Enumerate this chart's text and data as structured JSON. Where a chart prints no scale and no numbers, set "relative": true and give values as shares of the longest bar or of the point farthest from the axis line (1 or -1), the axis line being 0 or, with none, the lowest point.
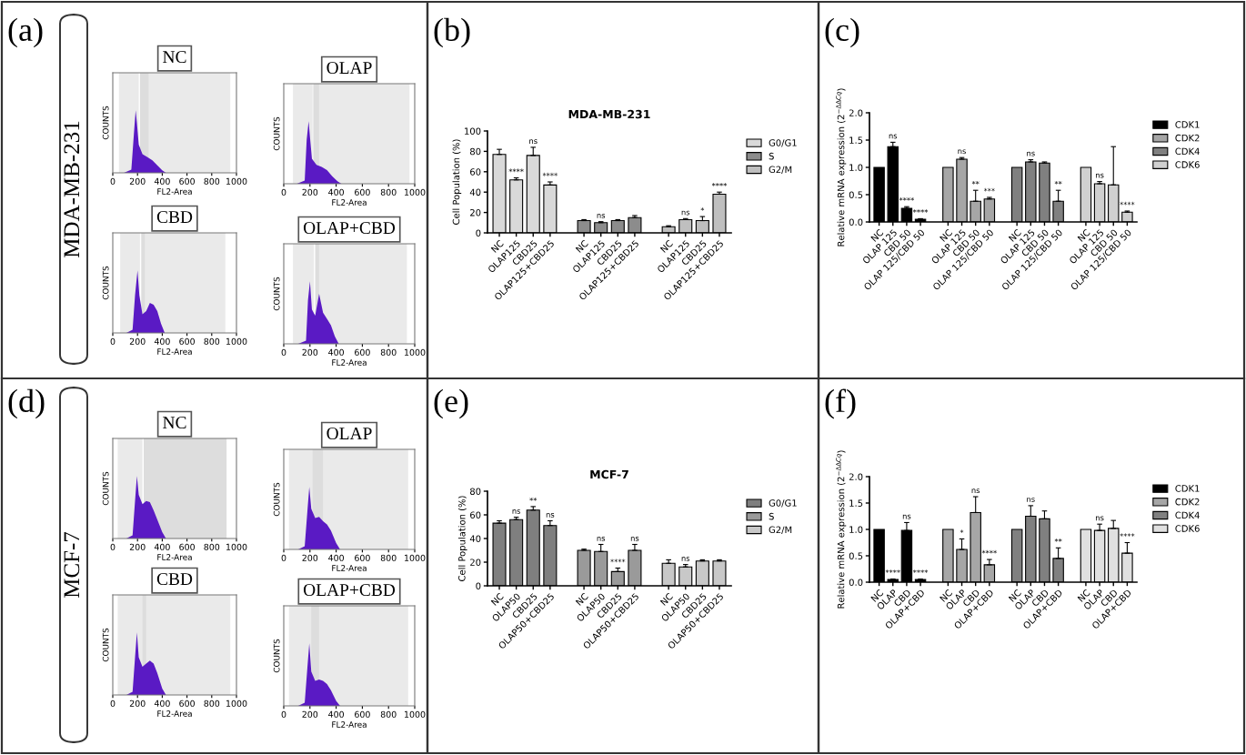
{
  "chart_data": [
    {
      "type": "area",
      "annotations": [
        "(a)",
        "MDA-MB-231"
      ],
      "title": "NC",
      "xlabel": "FL2-Area",
      "ylabel": "COUNTS",
      "relative": true,
      "tick_labels": "x",
      "xlim": [
        0,
        1000
      ],
      "xticks": [
        0,
        200,
        400,
        600,
        800,
        1000
      ],
      "color": "#5a1ac4",
      "x": [
        90,
        150,
        170,
        185,
        195,
        210,
        240,
        280,
        320,
        360,
        400,
        430
      ],
      "values": [
        0,
        0.05,
        0.6,
        1.0,
        0.8,
        0.45,
        0.3,
        0.25,
        0.2,
        0.12,
        0.04,
        0
      ],
      "bands": [
        {
          "axis": "x",
          "from": 50,
          "to": 210,
          "color": "#555555"
        },
        {
          "axis": "x",
          "from": 220,
          "to": 290,
          "color": "#555555"
        },
        {
          "axis": "x",
          "from": 290,
          "to": 950,
          "color": "#555555"
        }
      ]
    },
    {
      "type": "area",
      "title": "OLAP",
      "xlabel": "FL2-Area",
      "ylabel": "COUNTS",
      "relative": true,
      "tick_labels": "x",
      "xlim": [
        0,
        1000
      ],
      "xticks": [
        0,
        200,
        400,
        600,
        800,
        1000
      ],
      "color": "#5a1ac4",
      "x": [
        100,
        160,
        175,
        190,
        200,
        215,
        250,
        290,
        330,
        370,
        410,
        440
      ],
      "values": [
        0,
        0.05,
        0.7,
        1.0,
        0.75,
        0.4,
        0.3,
        0.27,
        0.22,
        0.12,
        0.04,
        0
      ],
      "bands": [
        {
          "axis": "x",
          "from": 70,
          "to": 220,
          "color": "#555555"
        },
        {
          "axis": "x",
          "from": 225,
          "to": 270,
          "color": "#555555"
        },
        {
          "axis": "x",
          "from": 270,
          "to": 960,
          "color": "#555555"
        }
      ]
    },
    {
      "type": "area",
      "title": "CBD",
      "xlabel": "FL2-Area",
      "ylabel": "COUNTS",
      "relative": true,
      "tick_labels": "x",
      "xlim": [
        0,
        1000
      ],
      "xticks": [
        0,
        200,
        400,
        600,
        800,
        1000
      ],
      "color": "#5a1ac4",
      "x": [
        110,
        160,
        180,
        200,
        215,
        240,
        270,
        300,
        330,
        360,
        390,
        420
      ],
      "values": [
        0,
        0.05,
        0.6,
        1.0,
        0.6,
        0.3,
        0.35,
        0.48,
        0.45,
        0.35,
        0.15,
        0
      ],
      "bands": [
        {
          "axis": "x",
          "from": 60,
          "to": 220,
          "color": "#555555"
        },
        {
          "axis": "x",
          "from": 230,
          "to": 260,
          "color": "#555555"
        },
        {
          "axis": "x",
          "from": 260,
          "to": 910,
          "color": "#555555"
        }
      ]
    },
    {
      "type": "area",
      "title": "OLAP+CBD",
      "xlabel": "FL2-Area",
      "ylabel": "COUNTS",
      "relative": true,
      "tick_labels": "x",
      "xlim": [
        0,
        1000
      ],
      "xticks": [
        0,
        200,
        400,
        600,
        800,
        1000
      ],
      "color": "#5a1ac4",
      "x": [
        110,
        170,
        185,
        200,
        215,
        240,
        270,
        300,
        330,
        360,
        390,
        420
      ],
      "values": [
        0,
        0.05,
        0.7,
        1.0,
        0.55,
        0.45,
        0.8,
        0.5,
        0.4,
        0.3,
        0.12,
        0
      ],
      "bands": [
        {
          "axis": "x",
          "from": 70,
          "to": 230,
          "color": "#555555"
        },
        {
          "axis": "x",
          "from": 240,
          "to": 270,
          "color": "#555555"
        },
        {
          "axis": "x",
          "from": 270,
          "to": 940,
          "color": "#555555"
        }
      ]
    },
    {
      "type": "bar",
      "title": "MDA-MB-231",
      "ylabel": "Cell Population (%)",
      "ylim": [
        0,
        100
      ],
      "yticks": [
        0,
        20,
        40,
        60,
        80,
        100
      ],
      "legend": "right",
      "annotations": [
        "(b)"
      ],
      "categories": [
        "NC",
        "OLAP125",
        "CBD25",
        "OLAP125+CBD25",
        null,
        "NC",
        "OLAP125",
        "CBD25",
        "OLAP125+CBD25",
        null,
        "NC",
        "OLAP125",
        "CBD25",
        "OLAP125+CBD25"
      ],
      "series": [
        {
          "name": "G0/G1",
          "color": "#d9d9d9",
          "values": [
            77,
            52,
            76,
            47,
            null,
            null,
            null,
            null,
            null,
            null,
            null,
            null,
            null,
            null
          ],
          "errors": [
            5,
            2,
            8,
            3,
            null,
            null,
            null,
            null,
            null,
            null,
            null,
            null,
            null,
            null
          ],
          "value_labels": [
            null,
            "****",
            "ns",
            "****",
            null,
            null,
            null,
            null,
            null,
            null,
            null,
            null,
            null,
            null
          ]
        },
        {
          "name": "S",
          "color": "#8c8c8c",
          "values": [
            null,
            null,
            null,
            null,
            null,
            12,
            10,
            12,
            15,
            null,
            null,
            null,
            null,
            null
          ],
          "errors": [
            null,
            null,
            null,
            null,
            null,
            1,
            1,
            1,
            2,
            null,
            null,
            null,
            null,
            null
          ],
          "value_labels": [
            null,
            null,
            null,
            null,
            null,
            null,
            "ns",
            null,
            null,
            null,
            null,
            null,
            null,
            null
          ]
        },
        {
          "name": "G2/M",
          "color": "#bfbfbf",
          "values": [
            null,
            null,
            null,
            null,
            null,
            null,
            null,
            null,
            null,
            null,
            6,
            13,
            12,
            38
          ],
          "errors": [
            null,
            null,
            null,
            null,
            null,
            null,
            null,
            null,
            null,
            null,
            1,
            1,
            4,
            2
          ],
          "value_labels": [
            null,
            null,
            null,
            null,
            null,
            null,
            null,
            null,
            null,
            null,
            null,
            "ns",
            "*",
            "****"
          ]
        }
      ]
    },
    {
      "type": "bar",
      "ylabel": "Relative mRNA expression (2$^{−ΔΔCq}$)",
      "ylim": [
        0,
        2.0
      ],
      "yticks": [
        {
          "value": 0,
          "label": "0.0"
        },
        0.5,
        {
          "value": 1,
          "label": "1.0"
        },
        1.5,
        {
          "value": 2,
          "label": "2.0"
        }
      ],
      "legend": "right",
      "annotations": [
        "(c)"
      ],
      "categories": [
        "NC",
        "OLAP 125",
        "CBD 50",
        "OLAP 125/CBD 50",
        null,
        "NC",
        "OLAP 125",
        "CBD 50",
        "OLAP 125/CBD 50",
        null,
        "NC",
        "OLAP 125",
        "CBD 50",
        "OLAP 125/CBD 50",
        null,
        "NC",
        "OLAP 125",
        "CBD 50",
        "OLAP 125/CBD 50"
      ],
      "series": [
        {
          "name": "CDK1",
          "color": "#000000",
          "values": [
            1.0,
            1.38,
            0.25,
            0.05,
            null,
            null,
            null,
            null,
            null,
            null,
            null,
            null,
            null,
            null,
            null,
            null,
            null,
            null,
            null
          ],
          "errors": [
            null,
            0.08,
            0.03,
            0.01,
            null,
            null,
            null,
            null,
            null,
            null,
            null,
            null,
            null,
            null,
            null,
            null,
            null,
            null,
            null
          ],
          "value_labels": [
            null,
            "ns",
            "****",
            "****",
            null,
            null,
            null,
            null,
            null,
            null,
            null,
            null,
            null,
            null,
            null,
            null,
            null,
            null,
            null
          ]
        },
        {
          "name": "CDK2",
          "color": "#a6a6a6",
          "values": [
            null,
            null,
            null,
            null,
            null,
            1.0,
            1.15,
            0.38,
            0.42,
            null,
            null,
            null,
            null,
            null,
            null,
            null,
            null,
            null,
            null
          ],
          "errors": [
            null,
            null,
            null,
            null,
            null,
            null,
            0.03,
            0.2,
            0.03,
            null,
            null,
            null,
            null,
            null,
            null,
            null,
            null,
            null,
            null
          ],
          "value_labels": [
            null,
            null,
            null,
            null,
            null,
            null,
            "ns",
            "**",
            "***",
            null,
            null,
            null,
            null,
            null,
            null,
            null,
            null,
            null,
            null
          ]
        },
        {
          "name": "CDK4",
          "color": "#808080",
          "values": [
            null,
            null,
            null,
            null,
            null,
            null,
            null,
            null,
            null,
            null,
            1.0,
            1.1,
            1.08,
            0.38,
            null,
            null,
            null,
            null,
            null
          ],
          "errors": [
            null,
            null,
            null,
            null,
            null,
            null,
            null,
            null,
            null,
            null,
            null,
            0.04,
            0.02,
            0.2,
            null,
            null,
            null,
            null,
            null
          ],
          "value_labels": [
            null,
            null,
            null,
            null,
            null,
            null,
            null,
            null,
            null,
            null,
            null,
            "ns",
            null,
            "**",
            null,
            null,
            null,
            null,
            null
          ]
        },
        {
          "name": "CDK6",
          "color": "#d0d0d0",
          "values": [
            null,
            null,
            null,
            null,
            null,
            null,
            null,
            null,
            null,
            null,
            null,
            null,
            null,
            null,
            null,
            1.0,
            0.7,
            0.68,
            0.18
          ],
          "errors": [
            null,
            null,
            null,
            null,
            null,
            null,
            null,
            null,
            null,
            null,
            null,
            null,
            null,
            null,
            null,
            null,
            0.04,
            0.7,
            0.02
          ],
          "value_labels": [
            null,
            null,
            null,
            null,
            null,
            null,
            null,
            null,
            null,
            null,
            null,
            null,
            null,
            null,
            null,
            null,
            "ns",
            null,
            "****"
          ]
        }
      ]
    },
    {
      "type": "area",
      "annotations": [
        "(d)",
        "MCF-7"
      ],
      "title": "NC",
      "xlabel": "FL2-Area",
      "ylabel": "COUNTS",
      "relative": true,
      "tick_labels": "x",
      "xlim": [
        0,
        1000
      ],
      "xticks": [
        0,
        200,
        400,
        600,
        800,
        1000
      ],
      "color": "#5a1ac4",
      "x": [
        110,
        160,
        180,
        195,
        210,
        240,
        270,
        300,
        330,
        360,
        400,
        430
      ],
      "values": [
        0,
        0.05,
        0.6,
        1.0,
        0.7,
        0.55,
        0.6,
        0.58,
        0.45,
        0.3,
        0.1,
        0
      ],
      "bands": [
        {
          "axis": "x",
          "from": 40,
          "to": 240,
          "color": "#555555"
        },
        {
          "axis": "x",
          "from": 250,
          "to": 920,
          "color": "#555555"
        }
      ]
    },
    {
      "type": "area",
      "title": "OLAP",
      "xlabel": "FL2-Area",
      "ylabel": "COUNTS",
      "relative": true,
      "tick_labels": "x",
      "xlim": [
        0,
        1000
      ],
      "xticks": [
        0,
        200,
        400,
        600,
        800,
        1000
      ],
      "color": "#5a1ac4",
      "x": [
        110,
        160,
        180,
        195,
        210,
        240,
        270,
        300,
        330,
        360,
        400,
        430
      ],
      "values": [
        0,
        0.05,
        0.6,
        1.0,
        0.65,
        0.5,
        0.52,
        0.45,
        0.4,
        0.3,
        0.1,
        0
      ],
      "bands": [
        {
          "axis": "x",
          "from": 40,
          "to": 220,
          "color": "#555555"
        },
        {
          "axis": "x",
          "from": 220,
          "to": 300,
          "color": "#555555"
        },
        {
          "axis": "x",
          "from": 300,
          "to": 950,
          "color": "#555555"
        }
      ]
    },
    {
      "type": "area",
      "title": "CBD",
      "xlabel": "FL2-Area",
      "ylabel": "COUNTS",
      "relative": true,
      "tick_labels": "x",
      "xlim": [
        0,
        1000
      ],
      "xticks": [
        0,
        200,
        400,
        600,
        800,
        1000
      ],
      "color": "#5a1ac4",
      "x": [
        110,
        160,
        180,
        195,
        210,
        240,
        270,
        300,
        330,
        360,
        400,
        430
      ],
      "values": [
        0,
        0.05,
        0.6,
        1.0,
        0.6,
        0.45,
        0.5,
        0.55,
        0.5,
        0.35,
        0.1,
        0
      ],
      "bands": [
        {
          "axis": "x",
          "from": 40,
          "to": 240,
          "color": "#555555"
        },
        {
          "axis": "x",
          "from": 240,
          "to": 270,
          "color": "#555555"
        },
        {
          "axis": "x",
          "from": 270,
          "to": 950,
          "color": "#555555"
        }
      ]
    },
    {
      "type": "area",
      "title": "OLAP+CBD",
      "xlabel": "FL2-Area",
      "ylabel": "COUNTS",
      "relative": true,
      "tick_labels": "x",
      "xlim": [
        0,
        1000
      ],
      "xticks": [
        0,
        200,
        400,
        600,
        800,
        1000
      ],
      "color": "#5a1ac4",
      "x": [
        110,
        160,
        180,
        195,
        210,
        240,
        270,
        300,
        330,
        360,
        400,
        430
      ],
      "values": [
        0,
        0.05,
        0.6,
        1.0,
        0.55,
        0.4,
        0.42,
        0.4,
        0.35,
        0.25,
        0.08,
        0
      ],
      "bands": [
        {
          "axis": "x",
          "from": 40,
          "to": 210,
          "color": "#555555"
        },
        {
          "axis": "x",
          "from": 210,
          "to": 270,
          "color": "#555555"
        },
        {
          "axis": "x",
          "from": 270,
          "to": 950,
          "color": "#555555"
        }
      ]
    },
    {
      "type": "bar",
      "title": "MCF-7",
      "ylabel": "Cell Population (%)",
      "ylim": [
        0,
        80
      ],
      "yticks": [
        0,
        20,
        40,
        60,
        80
      ],
      "legend": "right",
      "annotations": [
        "(e)"
      ],
      "categories": [
        "NC",
        "OLAP50",
        "CBD25",
        "OLAP50+CBD25",
        null,
        "NC",
        "OLAP50",
        "CBD25",
        "OLAP50+CBD25",
        null,
        "NC",
        "OLAP50",
        "CBD25",
        "OLAP50+CBD25"
      ],
      "series": [
        {
          "name": "G0/G1",
          "color": "#7f7f7f",
          "values": [
            53,
            56,
            64,
            51,
            null,
            null,
            null,
            null,
            null,
            null,
            null,
            null,
            null,
            null
          ],
          "errors": [
            2,
            2,
            3,
            4,
            null,
            null,
            null,
            null,
            null,
            null,
            null,
            null,
            null,
            null
          ],
          "value_labels": [
            null,
            "ns",
            "**",
            "ns",
            null,
            null,
            null,
            null,
            null,
            null,
            null,
            null,
            null,
            null
          ]
        },
        {
          "name": "S",
          "color": "#9a9a9a",
          "values": [
            null,
            null,
            null,
            null,
            null,
            30,
            29,
            12,
            30,
            null,
            null,
            null,
            null,
            null
          ],
          "errors": [
            null,
            null,
            null,
            null,
            null,
            1,
            6,
            3,
            5,
            null,
            null,
            null,
            null,
            null
          ],
          "value_labels": [
            null,
            null,
            null,
            null,
            null,
            null,
            "ns",
            "****",
            "ns",
            null,
            null,
            null,
            null,
            null
          ]
        },
        {
          "name": "G2/M",
          "color": "#c8c8c8",
          "values": [
            null,
            null,
            null,
            null,
            null,
            null,
            null,
            null,
            null,
            null,
            19,
            16,
            21,
            21
          ],
          "errors": [
            null,
            null,
            null,
            null,
            null,
            null,
            null,
            null,
            null,
            null,
            3,
            2,
            1,
            1
          ],
          "value_labels": [
            null,
            null,
            null,
            null,
            null,
            null,
            null,
            null,
            null,
            null,
            null,
            "ns",
            null,
            null
          ]
        }
      ]
    },
    {
      "type": "bar",
      "ylabel": "Relative mRNA expression (2$^{−ΔΔCq}$)",
      "ylim": [
        0,
        2.0
      ],
      "yticks": [
        {
          "value": 0,
          "label": "0.0"
        },
        0.5,
        {
          "value": 1,
          "label": "1.0"
        },
        1.5,
        {
          "value": 2,
          "label": "2.0"
        }
      ],
      "legend": "right",
      "annotations": [
        "(f)"
      ],
      "categories": [
        "NC",
        "OLAP",
        "CBD",
        "OLAP+CBD",
        null,
        "NC",
        "OLAP",
        "CBD",
        "OLAP+CBD",
        null,
        "NC",
        "OLAP",
        "CBD",
        "OLAP+CBD",
        null,
        "NC",
        "OLAP",
        "CBD",
        "OLAP+CBD"
      ],
      "series": [
        {
          "name": "CDK1",
          "color": "#000000",
          "values": [
            1.0,
            0.05,
            0.98,
            0.05,
            null,
            null,
            null,
            null,
            null,
            null,
            null,
            null,
            null,
            null,
            null,
            null,
            null,
            null,
            null
          ],
          "errors": [
            null,
            0.01,
            0.15,
            0.01,
            null,
            null,
            null,
            null,
            null,
            null,
            null,
            null,
            null,
            null,
            null,
            null,
            null,
            null,
            null
          ],
          "value_labels": [
            null,
            "****",
            "ns",
            "****",
            null,
            null,
            null,
            null,
            null,
            null,
            null,
            null,
            null,
            null,
            null,
            null,
            null,
            null,
            null
          ]
        },
        {
          "name": "CDK2",
          "color": "#a6a6a6",
          "values": [
            null,
            null,
            null,
            null,
            null,
            1.0,
            0.62,
            1.32,
            0.33,
            null,
            null,
            null,
            null,
            null,
            null,
            null,
            null,
            null,
            null
          ],
          "errors": [
            null,
            null,
            null,
            null,
            null,
            null,
            0.2,
            0.3,
            0.1,
            null,
            null,
            null,
            null,
            null,
            null,
            null,
            null,
            null,
            null
          ],
          "value_labels": [
            null,
            null,
            null,
            null,
            null,
            null,
            "*",
            "ns",
            "****",
            null,
            null,
            null,
            null,
            null,
            null,
            null,
            null,
            null,
            null
          ]
        },
        {
          "name": "CDK4",
          "color": "#808080",
          "values": [
            null,
            null,
            null,
            null,
            null,
            null,
            null,
            null,
            null,
            null,
            1.0,
            1.25,
            1.2,
            0.45,
            null,
            null,
            null,
            null,
            null
          ],
          "errors": [
            null,
            null,
            null,
            null,
            null,
            null,
            null,
            null,
            null,
            null,
            null,
            0.2,
            0.15,
            0.2,
            null,
            null,
            null,
            null,
            null
          ],
          "value_labels": [
            null,
            null,
            null,
            null,
            null,
            null,
            null,
            null,
            null,
            null,
            null,
            "ns",
            null,
            "**",
            null,
            null,
            null,
            null,
            null
          ]
        },
        {
          "name": "CDK6",
          "color": "#e0e0e0",
          "values": [
            null,
            null,
            null,
            null,
            null,
            null,
            null,
            null,
            null,
            null,
            null,
            null,
            null,
            null,
            null,
            1.0,
            0.98,
            1.02,
            0.55
          ],
          "errors": [
            null,
            null,
            null,
            null,
            null,
            null,
            null,
            null,
            null,
            null,
            null,
            null,
            null,
            null,
            null,
            null,
            0.12,
            0.15,
            0.2
          ],
          "value_labels": [
            null,
            null,
            null,
            null,
            null,
            null,
            null,
            null,
            null,
            null,
            null,
            null,
            null,
            null,
            null,
            null,
            "ns",
            null,
            "****"
          ]
        }
      ]
    }
  ]
}
